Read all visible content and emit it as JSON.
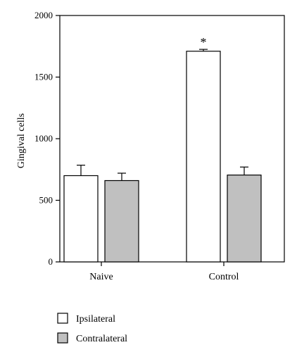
{
  "chart_data": {
    "type": "bar",
    "title": "",
    "xlabel": "",
    "ylabel": "Gingival cells",
    "ylim": [
      0,
      2000
    ],
    "yticks": [
      0,
      500,
      1000,
      1500,
      2000
    ],
    "categories": [
      "Naive",
      "Control"
    ],
    "series": [
      {
        "name": "Ipsilateral",
        "color": "#ffffff",
        "values": [
          700,
          1710
        ],
        "errors": [
          85,
          15
        ]
      },
      {
        "name": "Contralateral",
        "color": "#c0c0c0",
        "values": [
          660,
          705
        ],
        "errors": [
          60,
          65
        ]
      }
    ],
    "annotations": [
      {
        "text": "*",
        "category": "Control",
        "series": "Ipsilateral"
      }
    ],
    "grid": false,
    "legend": "bottom-left"
  }
}
